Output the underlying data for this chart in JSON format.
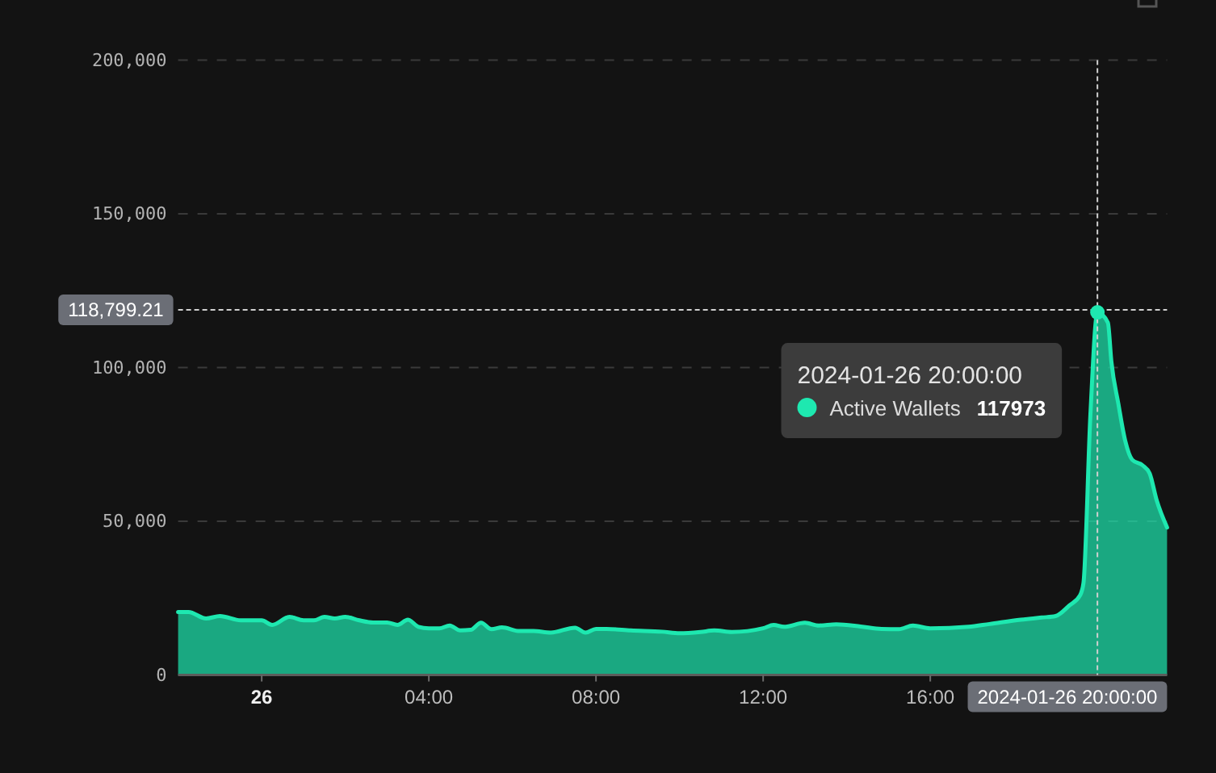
{
  "chart_data": {
    "type": "area",
    "x": [
      "2024-01-25T22:00",
      "2024-01-25T22:15",
      "2024-01-25T22:40",
      "2024-01-25T23:00",
      "2024-01-25T23:30",
      "2024-01-26T00:00",
      "2024-01-26T00:15",
      "2024-01-26T00:40",
      "2024-01-26T01:00",
      "2024-01-26T01:15",
      "2024-01-26T01:30",
      "2024-01-26T01:45",
      "2024-01-26T02:00",
      "2024-01-26T02:20",
      "2024-01-26T02:40",
      "2024-01-26T03:00",
      "2024-01-26T03:15",
      "2024-01-26T03:30",
      "2024-01-26T03:45",
      "2024-01-26T04:00",
      "2024-01-26T04:15",
      "2024-01-26T04:30",
      "2024-01-26T04:45",
      "2024-01-26T05:00",
      "2024-01-26T05:15",
      "2024-01-26T05:30",
      "2024-01-26T05:45",
      "2024-01-26T06:10",
      "2024-01-26T06:30",
      "2024-01-26T06:55",
      "2024-01-26T07:30",
      "2024-01-26T07:45",
      "2024-01-26T08:00",
      "2024-01-26T08:15",
      "2024-01-26T08:50",
      "2024-01-26T09:35",
      "2024-01-26T10:00",
      "2024-01-26T10:30",
      "2024-01-26T10:50",
      "2024-01-26T11:15",
      "2024-01-26T12:00",
      "2024-01-26T12:15",
      "2024-01-26T12:30",
      "2024-01-26T13:00",
      "2024-01-26T13:20",
      "2024-01-26T13:45",
      "2024-01-26T14:20",
      "2024-01-26T14:50",
      "2024-01-26T15:15",
      "2024-01-26T15:35",
      "2024-01-26T16:00",
      "2024-01-26T16:55",
      "2024-01-26T17:25",
      "2024-01-26T18:10",
      "2024-01-26T18:40",
      "2024-01-26T19:00",
      "2024-01-26T19:20",
      "2024-01-26T19:35",
      "2024-01-26T19:40",
      "2024-01-26T19:50",
      "2024-01-26T20:00",
      "2024-01-26T20:15",
      "2024-01-26T20:20",
      "2024-01-26T20:30",
      "2024-01-26T20:40",
      "2024-01-26T20:50",
      "2024-01-26T21:05",
      "2024-01-26T21:15",
      "2024-01-26T21:25",
      "2024-01-26T21:40"
    ],
    "series": [
      {
        "name": "Active Wallets",
        "color": "#1ee8b0",
        "values": [
          20500,
          20500,
          18400,
          19200,
          17800,
          17800,
          16300,
          18900,
          17800,
          17800,
          18900,
          18400,
          18900,
          17800,
          17100,
          17100,
          16300,
          18000,
          15700,
          15200,
          15200,
          16100,
          14500,
          14700,
          17000,
          14900,
          15500,
          14300,
          14300,
          13800,
          15400,
          13800,
          15000,
          15000,
          14500,
          14100,
          13600,
          14000,
          14500,
          14000,
          15200,
          16300,
          15700,
          17000,
          16100,
          16500,
          15800,
          15000,
          14900,
          16100,
          15200,
          15700,
          16600,
          18000,
          18700,
          19200,
          22700,
          25900,
          30000,
          85000,
          117973,
          114600,
          102000,
          88300,
          76100,
          70000,
          68200,
          65600,
          56900,
          48000
        ]
      }
    ],
    "xlim": [
      "2024-01-25T22:00",
      "2024-01-26T21:40"
    ],
    "ylim": [
      0,
      200000
    ],
    "xticks": [
      {
        "value": "2024-01-26T00:00",
        "label": "26"
      },
      {
        "value": "2024-01-26T04:00",
        "label": "04:00"
      },
      {
        "value": "2024-01-26T08:00",
        "label": "08:00"
      },
      {
        "value": "2024-01-26T12:00",
        "label": "12:00"
      },
      {
        "value": "2024-01-26T16:00",
        "label": "16:00"
      }
    ],
    "yticks": [
      0,
      {
        "value": 50000,
        "label": "50,000"
      },
      {
        "value": 100000,
        "label": "100,000"
      },
      {
        "value": 150000,
        "label": "150,000"
      },
      {
        "value": 200000,
        "label": "200,000"
      }
    ],
    "grid": "y",
    "ref_lines": [
      {
        "axis": "y",
        "value": 118799.21,
        "label": "118,799.21"
      },
      {
        "axis": "x",
        "value": "2024-01-26T20:00",
        "label": "2024-01-26 20:00:00"
      }
    ],
    "annotations": [
      "2024-01-26 20:00:00",
      "117973"
    ]
  }
}
